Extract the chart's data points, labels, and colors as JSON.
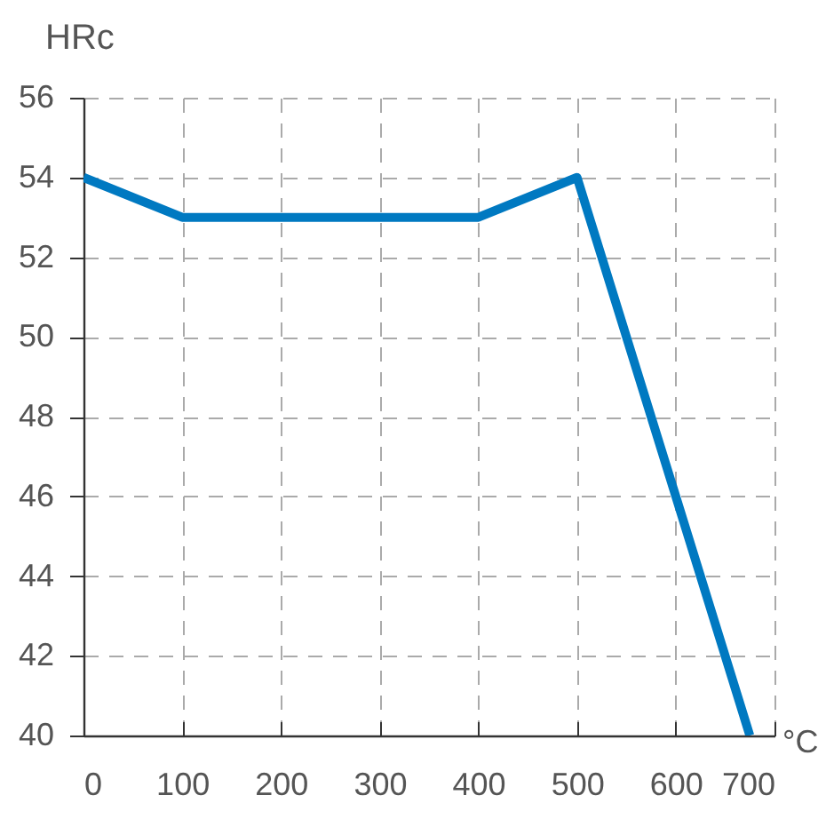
{
  "chart_data": {
    "type": "line",
    "xlabel": "°C",
    "ylabel": "HRc",
    "x": [
      0,
      100,
      400,
      500,
      675
    ],
    "series": [
      {
        "color": "#0079c1",
        "values": [
          54,
          53,
          53,
          54,
          40
        ]
      }
    ],
    "xlim": [
      0,
      700
    ],
    "xticks": [
      0,
      100,
      200,
      300,
      400,
      500,
      600,
      700
    ],
    "ylim": [
      40,
      56
    ],
    "yticks": [
      40,
      42,
      44,
      46,
      48,
      50,
      52,
      54,
      56
    ],
    "grid": true,
    "marker": "none",
    "line_style": "solid"
  }
}
